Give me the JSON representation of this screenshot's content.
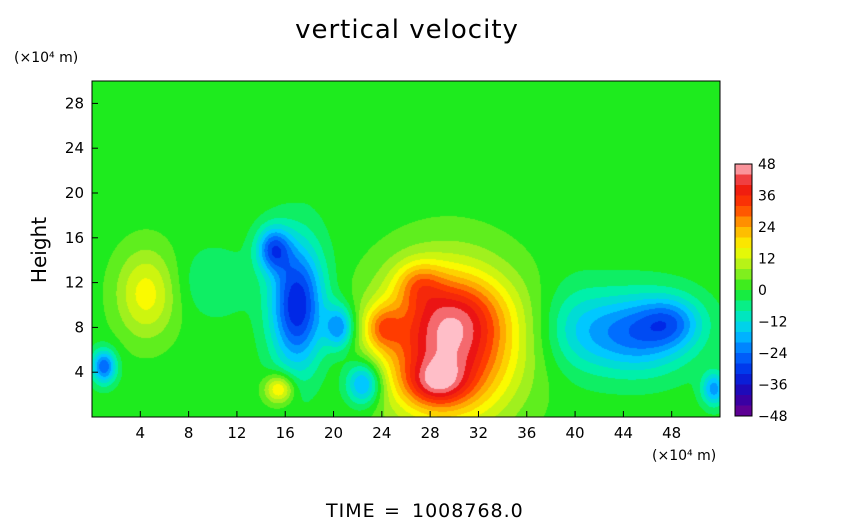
{
  "chart_data": {
    "type": "heatmap",
    "title": "vertical velocity",
    "xlabel": "",
    "ylabel": "Height",
    "x_unit": "(×10⁴ m)",
    "y_unit": "(×10⁴ m)",
    "xlim": [
      0,
      52
    ],
    "ylim": [
      0,
      30
    ],
    "x_ticks": [
      4,
      8,
      12,
      16,
      20,
      24,
      28,
      32,
      36,
      40,
      44,
      48
    ],
    "y_ticks": [
      4,
      8,
      12,
      16,
      20,
      24,
      28
    ],
    "colorbar": {
      "range": [
        -48,
        48
      ],
      "ticks": [
        48,
        36,
        24,
        12,
        0,
        -12,
        -24,
        -36,
        -48
      ]
    },
    "features": [
      {
        "x": 29.5,
        "y": 6.5,
        "amplitude": 44,
        "rx": 5.5,
        "ry": 6.5
      },
      {
        "x": 28.5,
        "y": 3.0,
        "amplitude": 18,
        "rx": 2.5,
        "ry": 2.0
      },
      {
        "x": 30.5,
        "y": 9.5,
        "amplitude": 8,
        "rx": 4.0,
        "ry": 3.0
      },
      {
        "x": 17.0,
        "y": 10.0,
        "amplitude": -34,
        "rx": 2.2,
        "ry": 5.5
      },
      {
        "x": 15.0,
        "y": 15.0,
        "amplitude": -24,
        "rx": 1.4,
        "ry": 2.0
      },
      {
        "x": 20.5,
        "y": 8.0,
        "amplitude": -22,
        "rx": 1.2,
        "ry": 2.0
      },
      {
        "x": 22.5,
        "y": 3.0,
        "amplitude": -24,
        "rx": 1.5,
        "ry": 2.0
      },
      {
        "x": 45.0,
        "y": 7.5,
        "amplitude": -24,
        "rx": 4.5,
        "ry": 3.5
      },
      {
        "x": 48.0,
        "y": 8.5,
        "amplitude": -14,
        "rx": 2.5,
        "ry": 2.2
      },
      {
        "x": 51.5,
        "y": 2.5,
        "amplitude": -20,
        "rx": 1.0,
        "ry": 1.5
      },
      {
        "x": 1.0,
        "y": 4.5,
        "amplitude": -26,
        "rx": 1.0,
        "ry": 1.5
      },
      {
        "x": 4.5,
        "y": 11.0,
        "amplitude": 16,
        "rx": 2.5,
        "ry": 4.0
      },
      {
        "x": 15.5,
        "y": 2.5,
        "amplitude": 20,
        "rx": 1.2,
        "ry": 1.3
      },
      {
        "x": 24.0,
        "y": 8.0,
        "amplitude": 16,
        "rx": 1.5,
        "ry": 2.0
      },
      {
        "x": 27.0,
        "y": 12.0,
        "amplitude": 12,
        "rx": 2.0,
        "ry": 2.0
      },
      {
        "x": 40.0,
        "y": 8.0,
        "amplitude": -8,
        "rx": 3.0,
        "ry": 4.0
      },
      {
        "x": 10.0,
        "y": 12.0,
        "amplitude": -6,
        "rx": 3.0,
        "ry": 3.0
      }
    ]
  },
  "footer": {
    "time_label": "TIME",
    "equals": "=",
    "time_value": "1008768.0"
  }
}
